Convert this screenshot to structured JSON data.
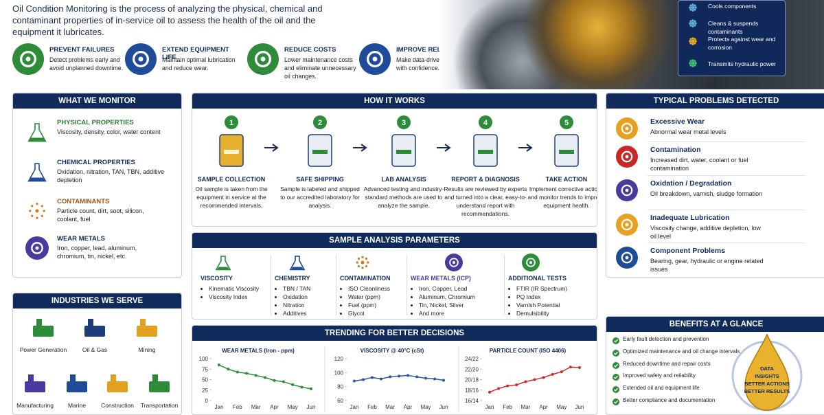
{
  "intro": "Oil Condition Monitoring is the process of analyzing the physical, chemical and contaminant properties of in-service oil to assess the health of the oil and the equipment it lubricates.",
  "features": [
    {
      "title": "PREVENT FAILURES",
      "text": "Detect problems early and avoid unplanned downtime."
    },
    {
      "title": "EXTEND EQUIPMENT LIFE",
      "text": "Maintain optimal lubrication and reduce wear."
    },
    {
      "title": "REDUCE COSTS",
      "text": "Lower maintenance costs and eliminate unnecessary oil changes."
    },
    {
      "title": "IMPROVE RELIABILITY",
      "text": "Make data-driven decisions with confidence."
    }
  ],
  "oil_functions": [
    "Cools components",
    "Cleans & suspends contaminants",
    "Protects against wear and corrosion",
    "Transmits hydraulic power"
  ],
  "monitor": {
    "title": "WHAT WE MONITOR",
    "items": [
      {
        "title": "PHYSICAL PROPERTIES",
        "text": "Viscosity, density, color, water content"
      },
      {
        "title": "CHEMICAL PROPERTIES",
        "text": "Oxidation, nitration, TAN, TBN, additive depletion"
      },
      {
        "title": "CONTAMINANTS",
        "text": "Particle count, dirt, soot, silicon, coolant, fuel"
      },
      {
        "title": "WEAR METALS",
        "text": "Iron, copper, lead, aluminum, chromium, tin, nickel, etc."
      }
    ]
  },
  "industries": {
    "title": "INDUSTRIES WE SERVE",
    "items": [
      "Power Generation",
      "Oil & Gas",
      "Mining",
      "Manufacturing",
      "Marine",
      "Construction",
      "Transportation"
    ]
  },
  "how_it_works": {
    "title": "HOW IT WORKS",
    "steps": [
      {
        "number": 1,
        "title": "SAMPLE COLLECTION",
        "text": "Oil sample is taken from the equipment in service at the recommended intervals."
      },
      {
        "number": 2,
        "title": "SAFE SHIPPING",
        "text": "Sample is labeled and shipped to our accredited laboratory for analysis."
      },
      {
        "number": 3,
        "title": "LAB ANALYSIS",
        "text": "Advanced testing and industry-standard methods are used to analyze the sample."
      },
      {
        "number": 4,
        "title": "REPORT & DIAGNOSIS",
        "text": "Results are reviewed by experts and turned into a clear, easy-to-understand report with recommendations."
      },
      {
        "number": 5,
        "title": "TAKE ACTION",
        "text": "Implement corrective actions and monitor trends to improve equipment health."
      }
    ]
  },
  "parameters": {
    "title": "SAMPLE ANALYSIS PARAMETERS",
    "columns": [
      {
        "title": "VISCOSITY",
        "items": [
          "Kinematic Viscosity",
          "Viscosity Index"
        ]
      },
      {
        "title": "CHEMISTRY",
        "items": [
          "TBN / TAN",
          "Oxidation",
          "Nitration",
          "Additives"
        ]
      },
      {
        "title": "CONTAMINATION",
        "items": [
          "ISO Cleanliness",
          "Water (ppm)",
          "Fuel (ppm)",
          "Glycol"
        ]
      },
      {
        "title": "WEAR METALS (ICP)",
        "items": [
          "Iron, Copper, Lead",
          "Aluminum, Chromium",
          "Tin, Nickel, Silver",
          "And more"
        ]
      },
      {
        "title": "ADDITIONAL TESTS",
        "items": [
          "FTIR (IR Spectrum)",
          "PQ Index",
          "Varnish Potential",
          "Demulsibility"
        ]
      }
    ]
  },
  "trending": {
    "title": "TRENDING FOR BETTER DECISIONS"
  },
  "chart_data": [
    {
      "type": "line",
      "title": "WEAR METALS (Iron - ppm)",
      "categories": [
        "Jan",
        null,
        "Feb",
        null,
        "Mar",
        null,
        "Apr",
        null,
        "May",
        null,
        "Jun"
      ],
      "values": [
        85,
        75,
        68,
        65,
        60,
        55,
        48,
        45,
        38,
        32,
        28
      ],
      "color": "#2e8b3a",
      "ylim": [
        0,
        100
      ],
      "yticks": [
        0,
        25,
        50,
        75,
        100
      ]
    },
    {
      "type": "line",
      "title": "VISCOSITY @ 40°C (cSt)",
      "categories": [
        "Jan",
        null,
        "Feb",
        null,
        "Mar",
        null,
        "Apr",
        null,
        "May",
        null,
        "Jun"
      ],
      "values": [
        88,
        90,
        93,
        91,
        94,
        95,
        96,
        94,
        92,
        91,
        89
      ],
      "color": "#2a56a8",
      "ylim": [
        60,
        120
      ],
      "yticks": [
        60,
        80,
        100,
        120
      ]
    },
    {
      "type": "line",
      "title": "PARTICLE COUNT (ISO 4406)",
      "categories": [
        "Jan",
        null,
        "Feb",
        null,
        "Mar",
        null,
        "Apr",
        null,
        "May",
        null,
        "Jun"
      ],
      "values": [
        15.6,
        16.3,
        16.8,
        17.0,
        17.6,
        18.0,
        18.4,
        19.0,
        19.5,
        20.4,
        20.3
      ],
      "color": "#cc2b2b",
      "ylim": [
        14,
        22
      ],
      "yticks": [
        {
          "value": 14,
          "label": "16/14"
        },
        {
          "value": 16,
          "label": "18/16"
        },
        {
          "value": 18,
          "label": "20/18"
        },
        {
          "value": 20,
          "label": "22/20"
        },
        {
          "value": 22,
          "label": "24/22"
        }
      ]
    }
  ],
  "problems": {
    "title": "TYPICAL PROBLEMS DETECTED",
    "items": [
      {
        "title": "Excessive Wear",
        "text": "Abnormal wear metal levels"
      },
      {
        "title": "Contamination",
        "text": "Increased dirt, water, coolant or fuel contamination"
      },
      {
        "title": "Oxidation / Degradation",
        "text": "Oil breakdown, varnish, sludge formation"
      },
      {
        "title": "Inadequate Lubrication",
        "text": "Viscosity change, additive depletion, low oil level"
      },
      {
        "title": "Component Problems",
        "text": "Bearing, gear, hydraulic or engine related issues"
      }
    ]
  },
  "benefits": {
    "title": "BENEFITS AT A GLANCE",
    "items": [
      "Early fault detection and prevention",
      "Optimized maintenance and oil change intervals",
      "Reduced downtime and repair costs",
      "Improved safety and reliability",
      "Extended oil and equipment life",
      "Better compliance and documentation"
    ],
    "badge": [
      "DATA",
      "INSIGHTS",
      "BETTER ACTIONS",
      "BETTER RESULTS"
    ]
  }
}
